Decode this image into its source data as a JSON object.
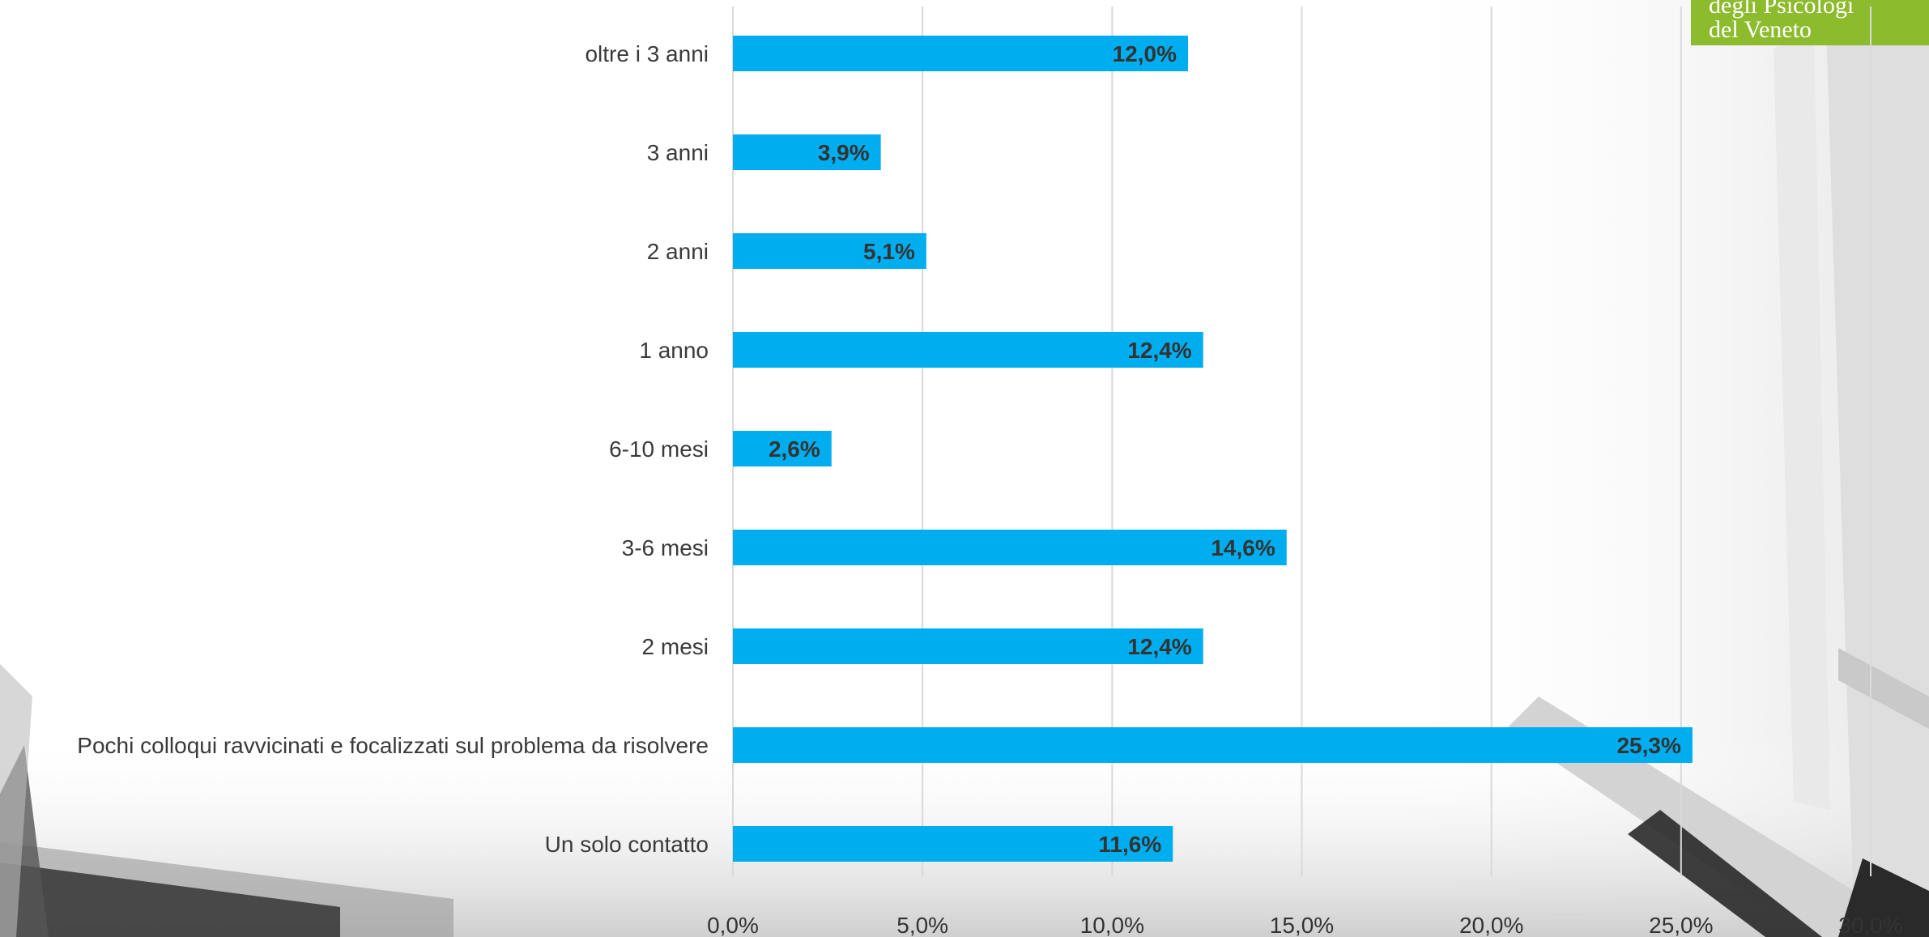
{
  "logo": {
    "line1": "degli Psicologi",
    "line2": "del Veneto"
  },
  "colors": {
    "bar": "#00aeef",
    "grid": "#d9d9d9",
    "logo_bg": "#8dbb2e"
  },
  "chart_data": {
    "type": "bar",
    "orientation": "horizontal",
    "title": "",
    "xlabel": "",
    "ylabel": "",
    "xlim": [
      0,
      30
    ],
    "grid": true,
    "categories": [
      "oltre i 3 anni",
      "3 anni",
      "2 anni",
      "1 anno",
      "6-10 mesi",
      "3-6 mesi",
      "2 mesi",
      "Pochi colloqui ravvicinati e focalizzati sul problema da risolvere",
      "Un solo contatto"
    ],
    "values": [
      12.0,
      3.9,
      5.1,
      12.4,
      2.6,
      14.6,
      12.4,
      25.3,
      11.6
    ],
    "value_labels": [
      "12,0%",
      "3,9%",
      "5,1%",
      "12,4%",
      "2,6%",
      "14,6%",
      "12,4%",
      "25,3%",
      "11,6%"
    ],
    "x_ticks": [
      0,
      5,
      10,
      15,
      20,
      25,
      30
    ],
    "x_tick_labels": [
      "0,0%",
      "5,0%",
      "10,0%",
      "15,0%",
      "20,0%",
      "25,0%",
      "30,0%"
    ]
  }
}
